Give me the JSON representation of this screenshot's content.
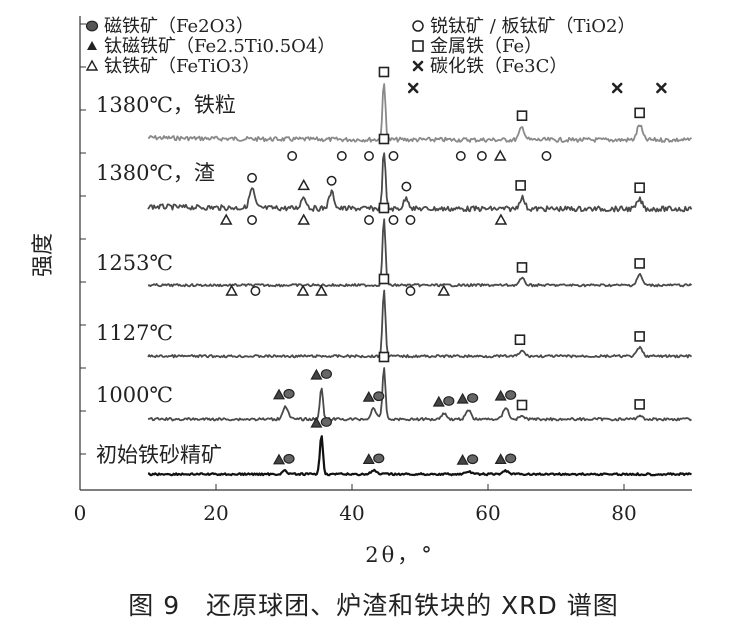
{
  "caption": "图 9　还原球团、炉渣和铁块的 XRD 谱图",
  "colors": {
    "axis": "#333333",
    "trace_dark": "#111111",
    "trace_mid": "#4a4a4a",
    "trace_light": "#8a8a8a"
  },
  "chart_data": {
    "type": "line",
    "title": "",
    "xlabel": "2θ，°",
    "ylabel": "强度",
    "xlim": [
      0,
      90
    ],
    "xticks": [
      0,
      20,
      40,
      60,
      80
    ],
    "y_tick_labels_shown": false,
    "legend": {
      "placement": "top",
      "entries": [
        {
          "marker": "circle-filled",
          "label": "磁铁矿（Fe2O3）"
        },
        {
          "marker": "triangle-filled",
          "label": "钛磁铁矿（Fe2.5Ti0.5O4）"
        },
        {
          "marker": "triangle-open",
          "label": "钛铁矿（FeTiO3）"
        },
        {
          "marker": "circle-open",
          "label": "锐钛矿 / 板钛矿（TiO2）"
        },
        {
          "marker": "square-open",
          "label": "金属铁（Fe）"
        },
        {
          "marker": "cross",
          "label": "碳化铁（Fe3C）"
        }
      ]
    },
    "series": [
      {
        "name": "1380℃，铁粒",
        "peaks": [
          [
            44.7,
            1.0
          ],
          [
            65.0,
            0.22
          ],
          [
            82.3,
            0.27
          ]
        ],
        "markers": [
          {
            "x": 44.7,
            "type": "square-open"
          },
          {
            "x": 49.0,
            "type": "cross"
          },
          {
            "x": 65.0,
            "type": "square-open"
          },
          {
            "x": 79.0,
            "type": "cross"
          },
          {
            "x": 82.3,
            "type": "square-open"
          },
          {
            "x": 85.5,
            "type": "cross"
          }
        ]
      },
      {
        "name": "1380℃，渣",
        "peaks": [
          [
            25.3,
            0.33
          ],
          [
            32.9,
            0.2
          ],
          [
            37.0,
            0.28
          ],
          [
            44.7,
            1.0
          ],
          [
            48.0,
            0.18
          ],
          [
            65.0,
            0.2
          ],
          [
            82.3,
            0.16
          ]
        ],
        "markers": [
          {
            "x": 25.3,
            "type": "circle-open"
          },
          {
            "x": 31.2,
            "type": "circle-open"
          },
          {
            "x": 32.9,
            "type": "triangle-open"
          },
          {
            "x": 37.0,
            "type": "circle-open"
          },
          {
            "x": 38.5,
            "type": "circle-open"
          },
          {
            "x": 42.5,
            "type": "circle-open"
          },
          {
            "x": 44.7,
            "type": "square-open"
          },
          {
            "x": 46.1,
            "type": "circle-open"
          },
          {
            "x": 48.0,
            "type": "circle-open"
          },
          {
            "x": 56.0,
            "type": "circle-open"
          },
          {
            "x": 59.1,
            "type": "circle-open"
          },
          {
            "x": 61.8,
            "type": "triangle-open"
          },
          {
            "x": 64.8,
            "type": "square-open"
          },
          {
            "x": 68.6,
            "type": "circle-open"
          },
          {
            "x": 82.3,
            "type": "square-open"
          }
        ]
      },
      {
        "name": "1253℃",
        "peaks": [
          [
            44.7,
            1.0
          ],
          [
            65.0,
            0.1
          ],
          [
            82.3,
            0.16
          ]
        ],
        "markers": [
          {
            "x": 21.5,
            "type": "triangle-open"
          },
          {
            "x": 25.3,
            "type": "circle-open"
          },
          {
            "x": 32.9,
            "type": "triangle-open"
          },
          {
            "x": 42.5,
            "type": "circle-open"
          },
          {
            "x": 44.7,
            "type": "square-open"
          },
          {
            "x": 46.1,
            "type": "circle-open"
          },
          {
            "x": 48.6,
            "type": "circle-open"
          },
          {
            "x": 61.9,
            "type": "triangle-open"
          },
          {
            "x": 65.0,
            "type": "square-open"
          },
          {
            "x": 82.3,
            "type": "square-open"
          }
        ]
      },
      {
        "name": "1127℃",
        "peaks": [
          [
            44.7,
            1.0
          ],
          [
            65.0,
            0.08
          ],
          [
            82.3,
            0.13
          ]
        ],
        "markers": [
          {
            "x": 22.3,
            "type": "triangle-open"
          },
          {
            "x": 25.8,
            "type": "circle-open"
          },
          {
            "x": 32.8,
            "type": "triangle-open"
          },
          {
            "x": 35.5,
            "type": "triangle-open"
          },
          {
            "x": 44.7,
            "type": "square-open"
          },
          {
            "x": 48.6,
            "type": "circle-open"
          },
          {
            "x": 53.5,
            "type": "triangle-open"
          },
          {
            "x": 64.7,
            "type": "square-open"
          },
          {
            "x": 82.3,
            "type": "square-open"
          }
        ]
      },
      {
        "name": "1000℃",
        "peaks": [
          [
            30.2,
            0.22
          ],
          [
            35.5,
            0.55
          ],
          [
            43.2,
            0.18
          ],
          [
            44.7,
            0.85
          ],
          [
            53.5,
            0.1
          ],
          [
            57.1,
            0.15
          ],
          [
            62.6,
            0.2
          ],
          [
            65.0,
            0.05
          ],
          [
            82.3,
            0.06
          ]
        ],
        "markers": [
          {
            "x": 30.0,
            "type": "triangle-circle"
          },
          {
            "x": 35.5,
            "type": "triangle-circle"
          },
          {
            "x": 43.2,
            "type": "triangle-circle"
          },
          {
            "x": 44.7,
            "type": "square-open"
          },
          {
            "x": 53.5,
            "type": "triangle-circle"
          },
          {
            "x": 57.0,
            "type": "triangle-circle"
          },
          {
            "x": 62.6,
            "type": "triangle-circle"
          },
          {
            "x": 65.0,
            "type": "square-open"
          },
          {
            "x": 82.3,
            "type": "square-open"
          }
        ]
      },
      {
        "name": "初始铁砂精矿",
        "peaks": [
          [
            30.1,
            0.08
          ],
          [
            35.5,
            1.0
          ],
          [
            43.2,
            0.09
          ],
          [
            57.1,
            0.07
          ],
          [
            62.6,
            0.09
          ]
        ],
        "markers": [
          {
            "x": 30.0,
            "type": "triangle-circle"
          },
          {
            "x": 35.5,
            "type": "triangle-circle"
          },
          {
            "x": 43.2,
            "type": "triangle-circle"
          },
          {
            "x": 57.0,
            "type": "triangle-circle"
          },
          {
            "x": 62.6,
            "type": "triangle-circle"
          }
        ]
      }
    ]
  }
}
